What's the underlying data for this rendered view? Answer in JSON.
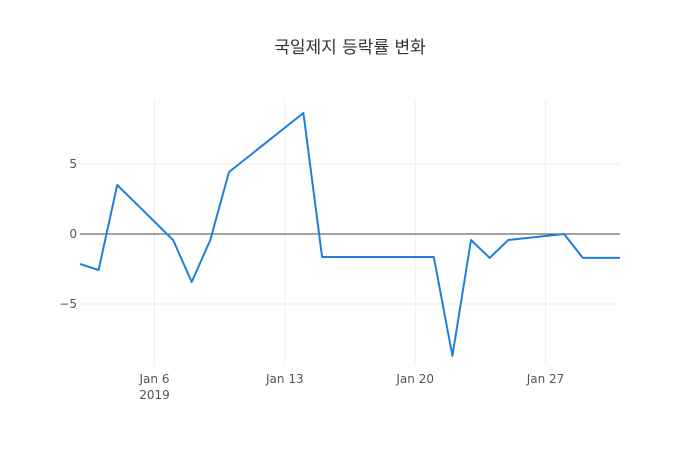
{
  "chart_data": {
    "type": "line",
    "title": "국일제지 등락률 변화",
    "xlabel": "",
    "ylabel": "",
    "x": [
      "2019-01-02",
      "2019-01-03",
      "2019-01-04",
      "2019-01-07",
      "2019-01-08",
      "2019-01-09",
      "2019-01-10",
      "2019-01-14",
      "2019-01-15",
      "2019-01-21",
      "2019-01-22",
      "2019-01-23",
      "2019-01-24",
      "2019-01-25",
      "2019-01-28",
      "2019-01-29",
      "2019-01-31"
    ],
    "series": [
      {
        "name": "등락률",
        "values": [
          -2.14,
          -2.57,
          3.5,
          -0.43,
          -3.43,
          -0.43,
          4.43,
          8.64,
          -1.64,
          -1.64,
          -8.7,
          -0.43,
          -1.71,
          -0.43,
          0.0,
          -1.71,
          -1.71
        ],
        "color": "#1f7fe0"
      }
    ],
    "x_ticks": [
      {
        "label": "Jan 6",
        "sub": "2019",
        "date": "2019-01-06"
      },
      {
        "label": "Jan 13",
        "date": "2019-01-13"
      },
      {
        "label": "Jan 20",
        "date": "2019-01-20"
      },
      {
        "label": "Jan 27",
        "date": "2019-01-27"
      }
    ],
    "y_ticks": [
      {
        "label": "5",
        "value": 5
      },
      {
        "label": "0",
        "value": 0
      },
      {
        "label": "−5",
        "value": -5
      }
    ],
    "ylim": [
      -9.3,
      9.6
    ],
    "xlim": [
      "2019-01-02",
      "2019-01-31"
    ],
    "grid": true,
    "zero_line": true,
    "legend": "none"
  }
}
